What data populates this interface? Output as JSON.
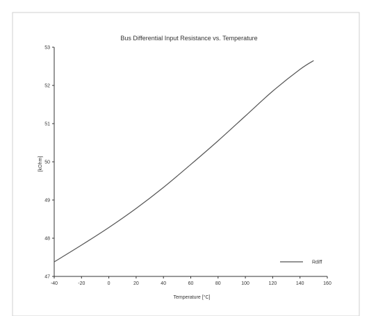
{
  "chart_data": {
    "type": "line",
    "title": "Bus Differential Input Resistance vs. Temperature",
    "xlabel": "Temperature [°C]",
    "ylabel": "[kOhm]",
    "xlim": [
      -40,
      160
    ],
    "ylim": [
      47,
      53
    ],
    "xticks": [
      -40,
      -20,
      0,
      20,
      40,
      60,
      80,
      100,
      120,
      140,
      160
    ],
    "yticks": [
      47,
      48,
      49,
      50,
      51,
      52,
      53
    ],
    "grid": false,
    "legend": "bottom-right",
    "series": [
      {
        "name": "Rdiff",
        "color": "#555555",
        "x": [
          -40,
          -20,
          0,
          20,
          40,
          60,
          80,
          100,
          120,
          140,
          150
        ],
        "y": [
          47.38,
          47.82,
          48.28,
          48.78,
          49.33,
          49.93,
          50.55,
          51.2,
          51.85,
          52.42,
          52.65
        ]
      }
    ]
  }
}
